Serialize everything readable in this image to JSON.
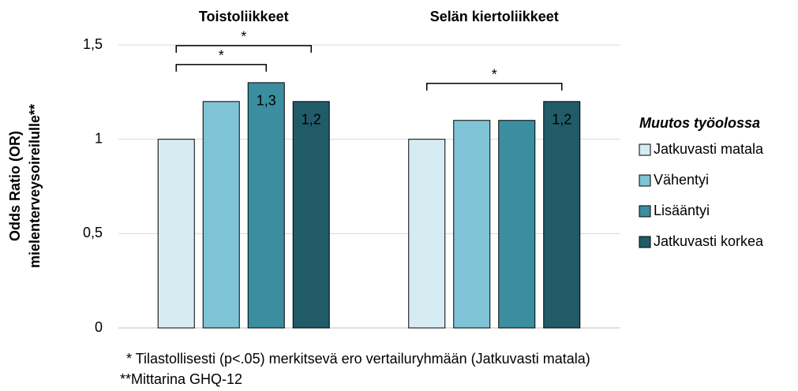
{
  "chart_data": {
    "type": "bar",
    "categories": [
      "Toistoliikkeet",
      "Selän kiertoliikkeet"
    ],
    "series": [
      {
        "name": "Jatkuvasti matala",
        "color": "#d6ecf2",
        "values": [
          1,
          1
        ]
      },
      {
        "name": "Vähentyi",
        "color": "#7fc4d6",
        "values": [
          1.2,
          1.1
        ]
      },
      {
        "name": "Lisääntyi",
        "color": "#3a8ea0",
        "values": [
          1.3,
          1.1
        ],
        "value_labels": [
          "1,3",
          null
        ]
      },
      {
        "name": "Jatkuvasti korkea",
        "color": "#215b68",
        "values": [
          1.2,
          1.2
        ],
        "value_labels": [
          "1,2",
          "1,2"
        ]
      }
    ],
    "ylabel": [
      "Odds Ratio (OR)",
      "mielenterveysoireilulle**"
    ],
    "ylim": [
      0,
      1.5
    ],
    "yticks": [
      0,
      {
        "value": 0.5,
        "label": "0,5"
      },
      1,
      {
        "value": 1.5,
        "label": "1,5"
      }
    ],
    "grid": true,
    "legend_title": "Muutos työolossa",
    "legend_position": "right",
    "annotations": [
      {
        "text": "*",
        "category": 0,
        "from": 0,
        "to": 2
      },
      {
        "text": "*",
        "category": 0,
        "from": 0,
        "to": 3
      },
      {
        "text": "*",
        "category": 1,
        "from": 0,
        "to": 3
      }
    ],
    "footnotes": [
      "* Tilastollisesti (p<.05) merkitsevä ero vertailuryhmään (Jatkuvasti matala)",
      "**Mittarina GHQ-12"
    ]
  }
}
